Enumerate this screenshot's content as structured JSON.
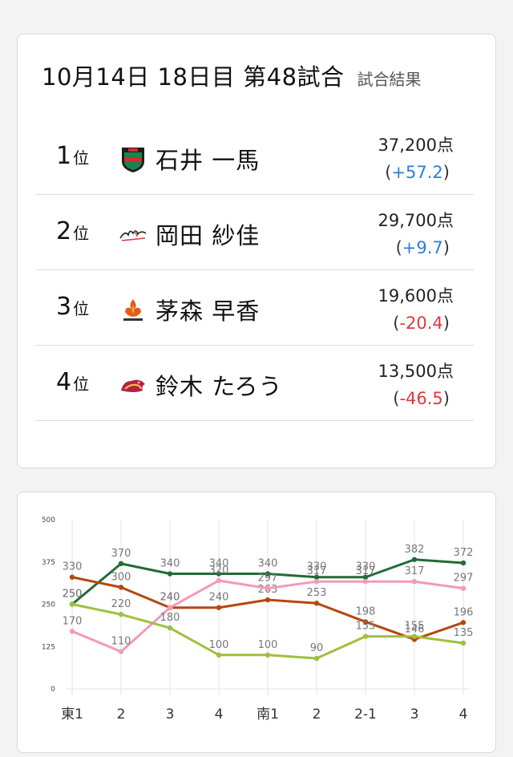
{
  "header": {
    "title": "10月14日  18日目  第48試合",
    "subtitle": "試合結果"
  },
  "results": [
    {
      "rank": "1",
      "rank_unit": "位",
      "team_icon": "jets-shield-icon",
      "name": "石井 一馬",
      "score": "37,200点",
      "delta": "+57.2",
      "delta_sign": "pos"
    },
    {
      "rank": "2",
      "rank_unit": "位",
      "team_icon": "thunders-script-icon",
      "name": "岡田 紗佳",
      "score": "29,700点",
      "delta": "+9.7",
      "delta_sign": "pos"
    },
    {
      "rank": "3",
      "rank_unit": "位",
      "team_icon": "phoenix-flame-icon",
      "name": "茅森 早香",
      "score": "19,600点",
      "delta": "-20.4",
      "delta_sign": "neg"
    },
    {
      "rank": "4",
      "rank_unit": "位",
      "team_icon": "dragon-icon",
      "name": "鈴木 たろう",
      "score": "13,500点",
      "delta": "-46.5",
      "delta_sign": "neg"
    }
  ],
  "chart_data": {
    "type": "line",
    "categories": [
      "東1",
      "2",
      "3",
      "4",
      "南1",
      "2",
      "2-1",
      "3",
      "4"
    ],
    "ylim": [
      0,
      500
    ],
    "yticks": [
      "0",
      "125",
      "250",
      "375",
      "500"
    ],
    "grid": "vertical",
    "series": [
      {
        "color": "#236b35",
        "values": [
          250,
          370,
          340,
          340,
          340,
          330,
          330,
          382,
          372
        ]
      },
      {
        "color": "#b5470e",
        "values": [
          330,
          300,
          240,
          240,
          263,
          253,
          198,
          146,
          196
        ]
      },
      {
        "color": "#f39ab8",
        "values": [
          170,
          110,
          240,
          320,
          297,
          317,
          317,
          317,
          297
        ]
      },
      {
        "color": "#9fc03e",
        "values": [
          250,
          220,
          180,
          100,
          100,
          90,
          155,
          155,
          135
        ]
      }
    ]
  }
}
